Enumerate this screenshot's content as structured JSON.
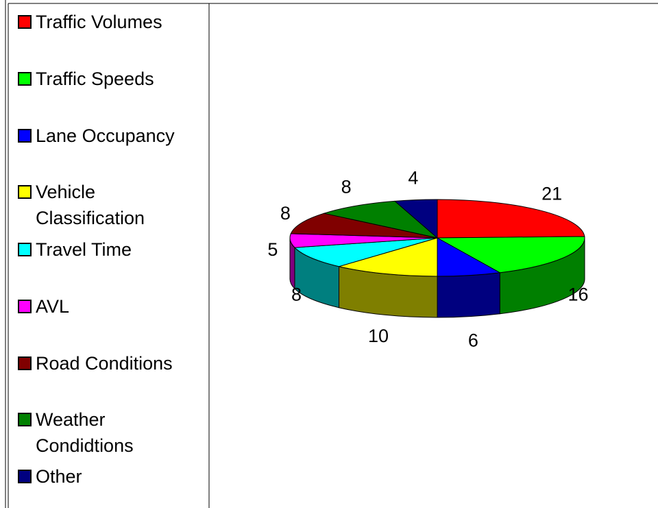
{
  "chart_data": {
    "type": "pie3d",
    "categories": [
      "Traffic Volumes",
      "Traffic Speeds",
      "Lane Occupancy",
      "Vehicle Classification",
      "Travel Time",
      "AVL",
      "Road Conditions",
      "Weather Condidtions",
      "Other"
    ],
    "values": [
      21,
      16,
      6,
      10,
      8,
      5,
      8,
      8,
      4
    ],
    "colors": [
      "#ff0000",
      "#00ff00",
      "#0000ff",
      "#ffff00",
      "#00ffff",
      "#ff00ff",
      "#800000",
      "#008000",
      "#000080"
    ],
    "legend": "left"
  }
}
